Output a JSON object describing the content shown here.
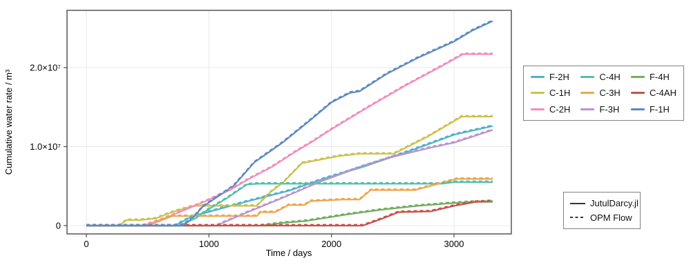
{
  "chart_data": {
    "type": "line",
    "title": "",
    "xlabel": "Time / days",
    "ylabel": "Cumulative water rate / m³",
    "xlim": [
      -158,
      3468
    ],
    "ylim": [
      -1050000,
      27250000
    ],
    "grid": true,
    "x_ticks": {
      "values": [
        0,
        1000,
        2000,
        3000
      ],
      "labels": [
        "0",
        "1000",
        "2000",
        "3000"
      ]
    },
    "y_ticks": {
      "values": [
        0,
        10000000,
        20000000
      ],
      "labels": [
        "0",
        "1.0×10⁷",
        "2.0×10⁷"
      ]
    },
    "legend_position": "right-outside",
    "series": [
      {
        "name": "F-2H",
        "color": "#4FB2C9",
        "x": [
          0,
          720,
          870,
          990,
          1300,
          1650,
          1950,
          2250,
          2650,
          3000,
          3200,
          3316
        ],
        "y": [
          0,
          0,
          1200000,
          1700000,
          3000000,
          4400000,
          6000000,
          7400000,
          9500000,
          11500000,
          12200000,
          12600000
        ]
      },
      {
        "name": "C-1H",
        "color": "#CCC14F",
        "x": [
          0,
          265,
          330,
          435,
          565,
          700,
          874,
          1390,
          1500,
          1608,
          1760,
          2060,
          2230,
          2510,
          2790,
          3063,
          3316
        ],
        "y": [
          0,
          0,
          700000,
          700000,
          900000,
          1700000,
          2500000,
          2500000,
          4200000,
          5500000,
          7900000,
          8800000,
          9100000,
          9100000,
          11300000,
          13800000,
          13800000
        ]
      },
      {
        "name": "C-2H",
        "color": "#F28CBB",
        "x": [
          0,
          460,
          600,
          760,
          990,
          1170,
          1325,
          1510,
          1700,
          1850,
          2000,
          2300,
          2600,
          2900,
          3074,
          3316
        ],
        "y": [
          0,
          0,
          700000,
          1700000,
          3200000,
          4500000,
          5900000,
          7400000,
          9300000,
          10700000,
          12200000,
          15000000,
          17700000,
          20200000,
          21700000,
          21700000
        ]
      },
      {
        "name": "C-4H",
        "color": "#52BFA8",
        "x": [
          0,
          760,
          900,
          1000,
          1150,
          1310,
          1400,
          2900,
          3000,
          3316
        ],
        "y": [
          0,
          0,
          1000000,
          2100000,
          3500000,
          5200000,
          5300000,
          5300000,
          5500000,
          5500000
        ]
      },
      {
        "name": "C-3H",
        "color": "#EDA64F",
        "x": [
          0,
          500,
          700,
          1390,
          1420,
          1540,
          1650,
          1780,
          1830,
          2100,
          2230,
          2320,
          2680,
          3020,
          3316
        ],
        "y": [
          0,
          0,
          1200000,
          1200000,
          1700000,
          1700000,
          2600000,
          2600000,
          3100000,
          3300000,
          3300000,
          4500000,
          4500000,
          5900000,
          5900000
        ]
      },
      {
        "name": "F-3H",
        "color": "#BC93CE",
        "x": [
          0,
          1060,
          1300,
          1600,
          1900,
          2230,
          2500,
          2790,
          3000,
          3316
        ],
        "y": [
          0,
          0,
          1600000,
          3500000,
          5500000,
          7400000,
          8700000,
          9800000,
          10500000,
          12100000
        ]
      },
      {
        "name": "F-4H",
        "color": "#73AD60",
        "x": [
          0,
          1420,
          1610,
          1800,
          2120,
          2400,
          2700,
          2950,
          3150,
          3316
        ],
        "y": [
          0,
          0,
          350000,
          600000,
          1400000,
          2000000,
          2500000,
          2800000,
          3000000,
          3000000
        ]
      },
      {
        "name": "C-4AH",
        "color": "#C8504B",
        "x": [
          0,
          2256,
          2400,
          2549,
          2810,
          3000,
          3180,
          3316
        ],
        "y": [
          0,
          0,
          800000,
          1700000,
          1800000,
          2500000,
          3000000,
          3100000
        ]
      },
      {
        "name": "F-1H",
        "color": "#5B89C4",
        "x": [
          0,
          790,
          870,
          950,
          1200,
          1370,
          1600,
          1800,
          2000,
          2150,
          2230,
          2450,
          2700,
          3000,
          3150,
          3316
        ],
        "y": [
          0,
          0,
          1000000,
          2400000,
          5000000,
          8000000,
          10500000,
          13000000,
          15600000,
          16800000,
          17000000,
          19200000,
          21200000,
          23300000,
          24700000,
          25900000
        ]
      }
    ],
    "simulators": [
      {
        "label": "JutulDarcy.jl",
        "line_style": "solid"
      },
      {
        "label": "OPM Flow",
        "line_style": "dashed"
      }
    ],
    "line_color_simulator_legend": "#353535",
    "frame_color": "#555555",
    "grid_color": "#e9e9e9"
  }
}
